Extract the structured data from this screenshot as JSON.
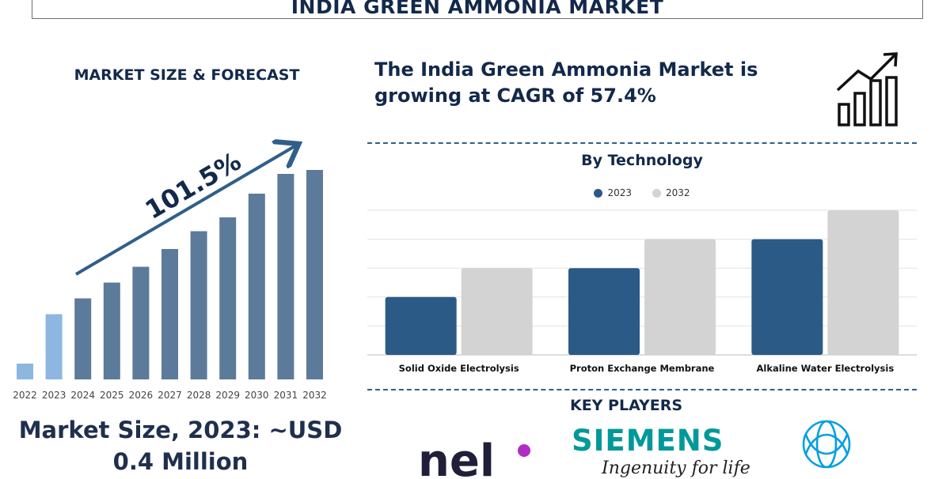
{
  "header": {
    "title": "INDIA GREEN AMMONIA MARKET"
  },
  "left_panel": {
    "heading": "MARKET SIZE & FORECAST",
    "growth_label": "101.5%",
    "market_size_line1": "Market Size, 2023: ~USD",
    "market_size_line2": "0.4 Million"
  },
  "right_panel": {
    "headline_line1": "The India Green Ammonia Market is",
    "headline_line2": "growing at CAGR of 57.4%",
    "growth_icon": "bar-chart-growth-icon",
    "chart_title": "By Technology",
    "key_players_title": "KEY PLAYERS",
    "logos": {
      "nel": "nel",
      "siemens": "SIEMENS",
      "siemens_tagline": "Ingenuity for life",
      "thyssenkrupp": "thyssenkrupp-emblem-icon"
    }
  },
  "colors": {
    "navy": "#13294b",
    "bar_dark": "#5c7a9a",
    "bar_light": "#8db7e0",
    "series_2023": "#2b5a87",
    "series_2032": "#d3d3d3",
    "siemens": "#009999",
    "nel_dot": "#b02cc4"
  },
  "chart_data": [
    {
      "type": "bar",
      "x": [
        "2022",
        "2023",
        "2024",
        "2025",
        "2026",
        "2027",
        "2028",
        "2029",
        "2030",
        "2031",
        "2032"
      ],
      "values": [
        8,
        33,
        41,
        49,
        57,
        66,
        75,
        82,
        94,
        104,
        106
      ],
      "annotation": "101.5%",
      "xlabel": "",
      "ylabel": "",
      "grid": false,
      "value_axis_shown": false
    },
    {
      "type": "bar",
      "title": "By Technology",
      "categories": [
        "Solid Oxide Electrolysis",
        "Proton Exchange Membrane",
        "Alkaline Water Electrolysis"
      ],
      "series": [
        {
          "name": "2023",
          "values": [
            2,
            3,
            4
          ]
        },
        {
          "name": "2032",
          "values": [
            3,
            4,
            5
          ]
        }
      ],
      "ylim": [
        0,
        5
      ],
      "grid": true,
      "legend": "top-center",
      "value_axis_shown": false
    }
  ]
}
